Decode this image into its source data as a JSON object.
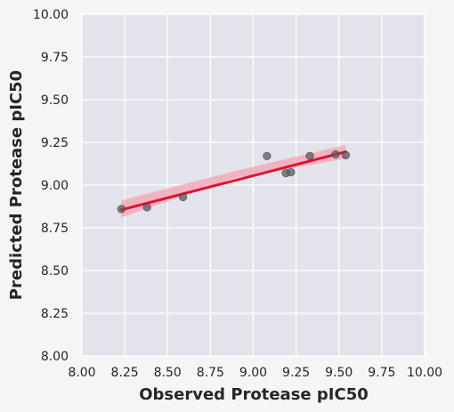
{
  "chart_data": {
    "type": "scatter",
    "title": "",
    "xlabel": "Observed Protease pIC50",
    "ylabel": "Predicted Protease pIC50",
    "xlim": [
      8.0,
      10.0
    ],
    "ylim": [
      8.0,
      10.0
    ],
    "xticks": [
      "8.00",
      "8.25",
      "8.50",
      "8.75",
      "9.00",
      "9.25",
      "9.50",
      "9.75",
      "10.00"
    ],
    "yticks": [
      "8.00",
      "8.25",
      "8.50",
      "8.75",
      "9.00",
      "9.25",
      "9.50",
      "9.75",
      "10.00"
    ],
    "grid": true,
    "points": [
      {
        "x": 8.23,
        "y": 8.86
      },
      {
        "x": 8.38,
        "y": 8.87
      },
      {
        "x": 8.59,
        "y": 8.93
      },
      {
        "x": 9.08,
        "y": 9.17
      },
      {
        "x": 9.19,
        "y": 9.07
      },
      {
        "x": 9.22,
        "y": 9.075
      },
      {
        "x": 9.33,
        "y": 9.17
      },
      {
        "x": 9.48,
        "y": 9.18
      },
      {
        "x": 9.54,
        "y": 9.175
      }
    ],
    "regression": {
      "start": {
        "x": 8.23,
        "y": 8.855
      },
      "end": {
        "x": 9.54,
        "y": 9.195
      },
      "ci_start": [
        8.81,
        8.91
      ],
      "ci_mid": [
        9.04,
        9.08
      ],
      "ci_end": [
        9.155,
        9.235
      ]
    },
    "colors": {
      "background": "#f5f5f5",
      "plot_area": "#e3e3eb",
      "grid": "#ffffff",
      "points": "#5a5a5f",
      "line": "#dc1430",
      "ci_band": "#f4aab8",
      "text": "#262626"
    }
  }
}
